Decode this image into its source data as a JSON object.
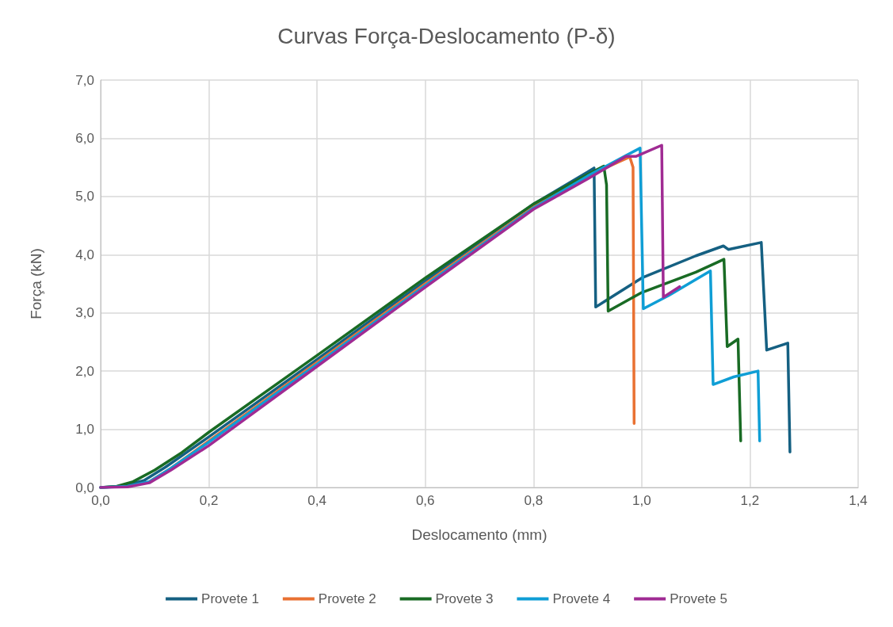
{
  "chart_data": {
    "type": "line",
    "title": "Curvas Força-Deslocamento (P-δ)",
    "xlabel": "Deslocamento (mm)",
    "ylabel": "Força (kN)",
    "xlim": [
      0,
      1.4
    ],
    "xticks": [
      {
        "value": 0,
        "label": "0,0"
      },
      {
        "value": 0.2,
        "label": "0,2"
      },
      {
        "value": 0.4,
        "label": "0,4"
      },
      {
        "value": 0.6,
        "label": "0,6"
      },
      {
        "value": 0.8,
        "label": "0,8"
      },
      {
        "value": 1,
        "label": "1,0"
      },
      {
        "value": 1.2,
        "label": "1,2"
      },
      {
        "value": 1.4,
        "label": "1,4"
      }
    ],
    "ylim": [
      0,
      7
    ],
    "yticks": [
      {
        "value": 0,
        "label": "0,0"
      },
      {
        "value": 1,
        "label": "1,0"
      },
      {
        "value": 2,
        "label": "2,0"
      },
      {
        "value": 3,
        "label": "3,0"
      },
      {
        "value": 4,
        "label": "4,0"
      },
      {
        "value": 5,
        "label": "5,0"
      },
      {
        "value": 6,
        "label": "6,0"
      },
      {
        "value": 7,
        "label": "7,0"
      }
    ],
    "grid": true,
    "legend": "bottom",
    "marker": "none",
    "line_style": "solid",
    "series": [
      {
        "name": "Provete 1",
        "color": "#156082",
        "x": [
          0,
          0.04,
          0.08,
          0.12,
          0.2,
          0.4,
          0.6,
          0.8,
          0.9,
          0.912,
          0.915,
          1.0,
          1.1,
          1.151,
          1.16,
          1.221,
          1.231,
          1.27,
          1.274
        ],
        "values": [
          0,
          0.02,
          0.12,
          0.35,
          0.87,
          2.2,
          3.55,
          4.87,
          5.42,
          5.49,
          3.1,
          3.6,
          3.98,
          4.15,
          4.09,
          4.21,
          2.36,
          2.48,
          0.61
        ]
      },
      {
        "name": "Provete 2",
        "color": "#e97132",
        "x": [
          0.09,
          0.13,
          0.2,
          0.4,
          0.6,
          0.8,
          0.9,
          0.978,
          0.984,
          0.986
        ],
        "values": [
          0.1,
          0.33,
          0.8,
          2.15,
          3.5,
          4.82,
          5.35,
          5.68,
          5.5,
          1.1
        ]
      },
      {
        "name": "Provete 3",
        "color": "#196b24",
        "x": [
          0,
          0.03,
          0.06,
          0.1,
          0.15,
          0.2,
          0.4,
          0.6,
          0.8,
          0.9,
          0.93,
          0.935,
          0.938,
          1.0,
          1.1,
          1.152,
          1.158,
          1.178,
          1.183
        ],
        "values": [
          0,
          0.02,
          0.1,
          0.3,
          0.6,
          0.95,
          2.27,
          3.6,
          4.87,
          5.38,
          5.52,
          5.2,
          3.03,
          3.35,
          3.7,
          3.92,
          2.42,
          2.55,
          0.8
        ]
      },
      {
        "name": "Provete 4",
        "color": "#0f9ed5",
        "x": [
          0,
          0.05,
          0.09,
          0.13,
          0.2,
          0.4,
          0.6,
          0.8,
          0.9,
          0.97,
          0.997,
          1.003,
          1.05,
          1.127,
          1.132,
          1.17,
          1.215,
          1.218
        ],
        "values": [
          0,
          0.02,
          0.1,
          0.33,
          0.78,
          2.12,
          3.47,
          4.8,
          5.35,
          5.7,
          5.83,
          3.07,
          3.3,
          3.72,
          1.77,
          1.9,
          2.0,
          0.8
        ]
      },
      {
        "name": "Provete 5",
        "color": "#a02b93",
        "x": [
          0,
          0.05,
          0.09,
          0.13,
          0.2,
          0.4,
          0.6,
          0.8,
          0.9,
          0.971,
          0.99,
          1.037,
          1.04,
          1.07
        ],
        "values": [
          0,
          0.01,
          0.08,
          0.3,
          0.72,
          2.08,
          3.44,
          4.78,
          5.3,
          5.69,
          5.69,
          5.88,
          3.27,
          3.45
        ]
      }
    ]
  }
}
